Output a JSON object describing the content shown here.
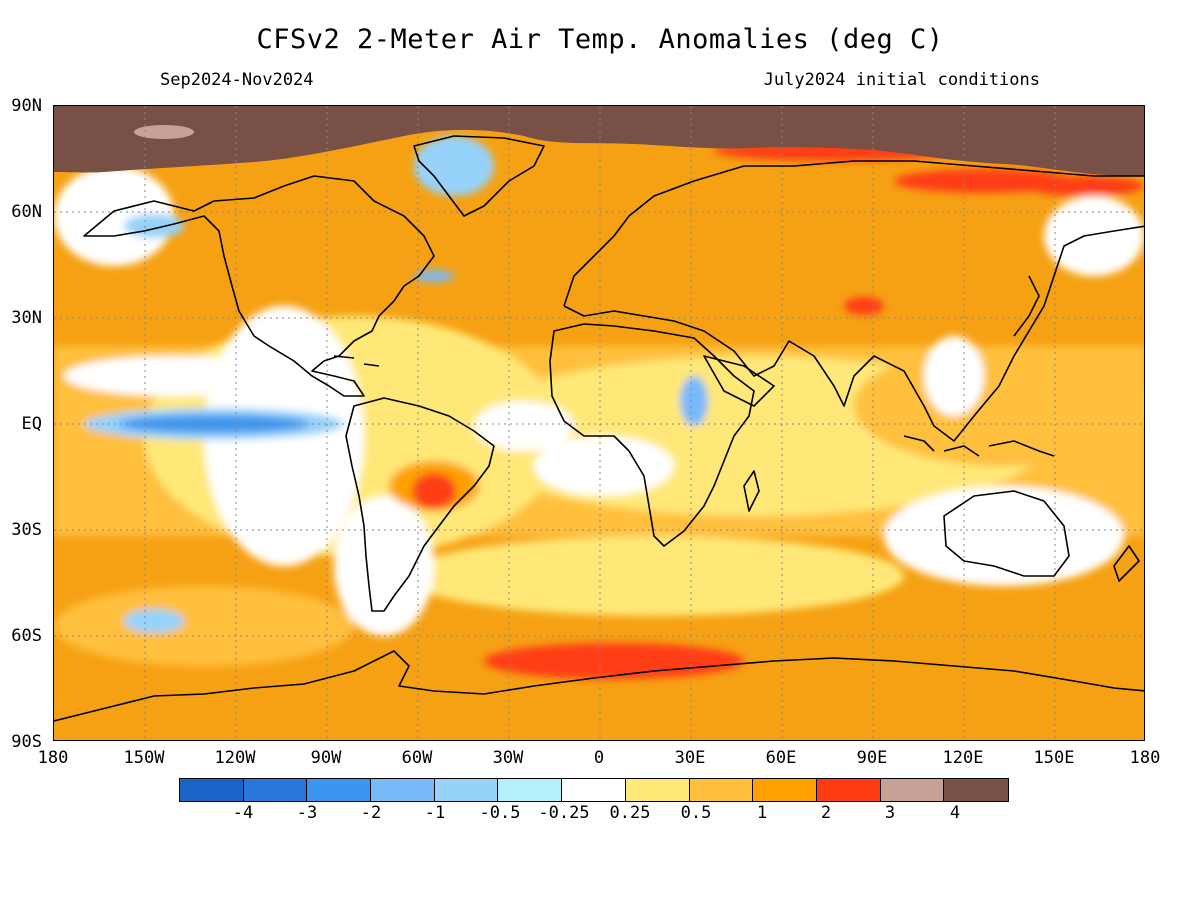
{
  "title": "CFSv2 2-Meter Air Temp. Anomalies (deg C)",
  "subtitle_left": "Sep2024-Nov2024",
  "subtitle_right": "July2024 initial conditions",
  "lat_labels": [
    "90N",
    "60N",
    "30N",
    "EQ",
    "30S",
    "60S",
    "90S"
  ],
  "lon_labels": [
    "180",
    "150W",
    "120W",
    "90W",
    "60W",
    "30W",
    "0",
    "30E",
    "60E",
    "90E",
    "120E",
    "150E",
    "180"
  ],
  "legend": {
    "colors": [
      "#1a64c8",
      "#2878dc",
      "#3c96f0",
      "#78b9fa",
      "#96d2fa",
      "#b4f0fa",
      "#ffffff",
      "#ffe878",
      "#ffc03c",
      "#ffa000",
      "#ff3c14",
      "#c8a096",
      "#785046"
    ],
    "tick_labels": [
      "-4",
      "-3",
      "-2",
      "-1",
      "-0.5",
      "-0.25",
      "0.25",
      "0.5",
      "1",
      "2",
      "3",
      "4"
    ]
  }
}
